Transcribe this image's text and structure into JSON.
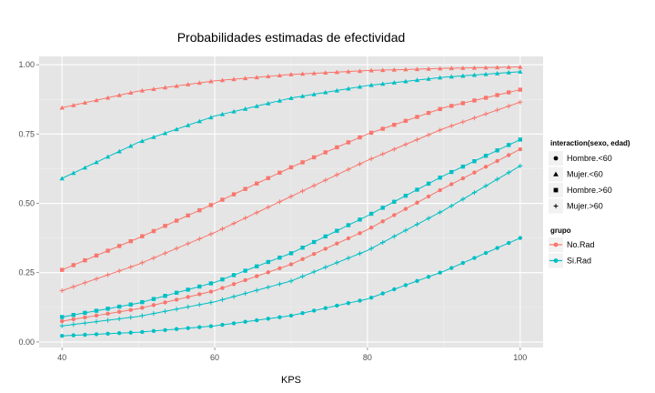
{
  "chart_data": {
    "type": "line",
    "title": "Probabilidades estimadas de efectividad",
    "xlabel": "KPS",
    "ylabel": "",
    "xlim": [
      37,
      103
    ],
    "ylim": [
      -0.02,
      1.03
    ],
    "x_ticks": [
      40,
      60,
      80,
      100
    ],
    "y_ticks": [
      0.0,
      0.25,
      0.5,
      0.75,
      1.0
    ],
    "x_tick_labels": [
      "40",
      "60",
      "80",
      "100"
    ],
    "y_tick_labels": [
      "0.00",
      "0.25",
      "0.50",
      "0.75",
      "1.00"
    ],
    "grid": true,
    "background": "#e5e5e5",
    "legend_shape": {
      "title": "interaction(sexo, edad)",
      "items": [
        {
          "label": "Hombre.<60",
          "shape": "circle"
        },
        {
          "label": "Mujer.<60",
          "shape": "triangle"
        },
        {
          "label": "Hombre.>60",
          "shape": "square"
        },
        {
          "label": "Mujer.>60",
          "shape": "plus"
        }
      ]
    },
    "legend_color": {
      "title": "grupo",
      "items": [
        {
          "label": "No.Rad",
          "color": "#f8766d"
        },
        {
          "label": "Si.Rad",
          "color": "#00bfc4"
        }
      ]
    },
    "x_range": [
      40,
      100
    ],
    "x_step": 1.5,
    "series": [
      {
        "grupo": "No.Rad",
        "shape": "triangle",
        "color": "#f8766d",
        "x": [
          40,
          50,
          60,
          70,
          80,
          90,
          100
        ],
        "values": [
          0.845,
          0.905,
          0.942,
          0.965,
          0.979,
          0.987,
          0.992
        ]
      },
      {
        "grupo": "Si.Rad",
        "shape": "triangle",
        "color": "#00bfc4",
        "x": [
          40,
          50,
          60,
          70,
          80,
          90,
          100
        ],
        "values": [
          0.59,
          0.72,
          0.815,
          0.88,
          0.925,
          0.955,
          0.975
        ]
      },
      {
        "grupo": "No.Rad",
        "shape": "square",
        "color": "#f8766d",
        "x": [
          40,
          50,
          60,
          70,
          80,
          90,
          100
        ],
        "values": [
          0.26,
          0.375,
          0.5,
          0.63,
          0.75,
          0.845,
          0.91
        ]
      },
      {
        "grupo": "No.Rad",
        "shape": "plus",
        "color": "#f8766d",
        "x": [
          40,
          50,
          60,
          70,
          80,
          90,
          100
        ],
        "values": [
          0.185,
          0.28,
          0.395,
          0.525,
          0.655,
          0.77,
          0.865
        ]
      },
      {
        "grupo": "Si.Rad",
        "shape": "square",
        "color": "#00bfc4",
        "x": [
          40,
          50,
          60,
          70,
          80,
          90,
          100
        ],
        "values": [
          0.09,
          0.14,
          0.215,
          0.32,
          0.455,
          0.6,
          0.73
        ]
      },
      {
        "grupo": "No.Rad",
        "shape": "circle",
        "color": "#f8766d",
        "x": [
          40,
          50,
          60,
          70,
          80,
          90,
          100
        ],
        "values": [
          0.075,
          0.12,
          0.185,
          0.28,
          0.405,
          0.555,
          0.695
        ]
      },
      {
        "grupo": "Si.Rad",
        "shape": "plus",
        "color": "#00bfc4",
        "x": [
          40,
          50,
          60,
          70,
          80,
          90,
          100
        ],
        "values": [
          0.058,
          0.092,
          0.145,
          0.22,
          0.33,
          0.475,
          0.635
        ]
      },
      {
        "grupo": "Si.Rad",
        "shape": "circle",
        "color": "#00bfc4",
        "x": [
          40,
          50,
          60,
          70,
          80,
          90,
          100
        ],
        "values": [
          0.022,
          0.035,
          0.058,
          0.095,
          0.155,
          0.255,
          0.375
        ]
      }
    ]
  }
}
